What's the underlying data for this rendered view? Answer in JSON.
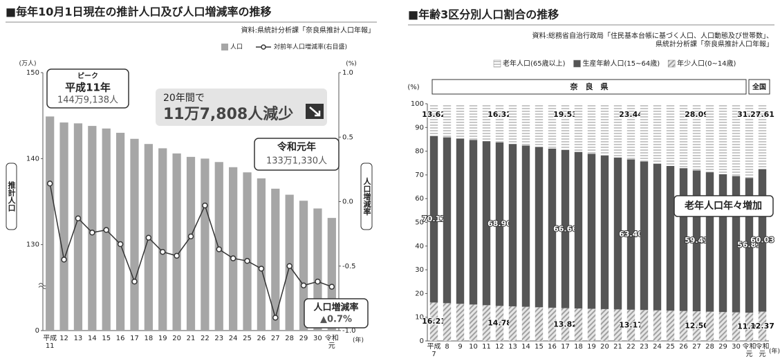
{
  "chart_data": [
    {
      "type": "bar",
      "title": "■毎年10月1日現在の推計人口及び人口増減率の推移",
      "source": "資料:県統計分析課「奈良県推計人口年報」",
      "y_unit": "(万人)",
      "y2_unit": "(%)",
      "x_unit": "(年)",
      "y_label": "推計人口",
      "y2_label": "人口増減率",
      "categories": [
        "平成11",
        "12",
        "13",
        "14",
        "15",
        "16",
        "17",
        "18",
        "19",
        "20",
        "21",
        "22",
        "23",
        "24",
        "25",
        "26",
        "27",
        "28",
        "29",
        "30",
        "令和元"
      ],
      "series": [
        {
          "name": "人口",
          "color": "#a6a6a6",
          "values": [
            144.9,
            144.2,
            144.1,
            143.8,
            143.5,
            143.0,
            142.3,
            141.7,
            141.2,
            140.6,
            140.2,
            140.0,
            139.6,
            139.0,
            138.4,
            137.7,
            136.5,
            135.8,
            135.1,
            134.2,
            133.1
          ]
        },
        {
          "name": "対前年人口増減率(右目盛)",
          "type": "line",
          "axis": "y2",
          "color": "#333333",
          "values": [
            0.14,
            -0.45,
            -0.13,
            -0.24,
            -0.22,
            -0.33,
            -0.62,
            -0.28,
            -0.39,
            -0.42,
            -0.27,
            -0.03,
            -0.37,
            -0.44,
            -0.46,
            -0.52,
            -0.9,
            -0.5,
            -0.65,
            -0.62,
            -0.66
          ]
        }
      ],
      "ylim": [
        0,
        150
      ],
      "yticks": [
        0,
        130,
        140,
        150
      ],
      "axis_break": [
        0,
        130
      ],
      "y2lim": [
        -1,
        1
      ],
      "y2ticks": [
        {
          "value": -1,
          "label": "-1.0"
        },
        {
          "value": -0.5,
          "label": "-0.5"
        },
        {
          "value": 0,
          "label": "0.0"
        },
        {
          "value": 0.5,
          "label": "0.5"
        },
        {
          "value": 1,
          "label": "1.0"
        }
      ],
      "grid": false,
      "legend": "top-right",
      "annotations": [
        "ピーク",
        "平成11年",
        "144万9,138人",
        "20年間で",
        "11万7,808人減少",
        "令和元年",
        "133万1,330人",
        "人口増減率",
        "▲0.7%"
      ]
    },
    {
      "type": "stacked_bar",
      "title": "■年齢3区分別人口割合の推移",
      "source": [
        "資料:総務省自治行政局「住民基本台帳に基づく人口、人口動態及び世帯数」、",
        "県統計分析課「奈良県推計人口年報」"
      ],
      "y_unit": "(%)",
      "x_unit": "(年)",
      "region_label": "奈　良　県",
      "comparison_label": "全国",
      "categories": [
        "平成7",
        "8",
        "9",
        "10",
        "11",
        "12",
        "13",
        "14",
        "15",
        "16",
        "17",
        "18",
        "19",
        "20",
        "21",
        "22",
        "23",
        "24",
        "25",
        "26",
        "27",
        "28",
        "29",
        "30",
        "令和元",
        "令和元"
      ],
      "series": [
        {
          "name": "年少人口(0~14歳)",
          "color": "#a0a0a0",
          "pattern": "diagonal",
          "label_color": "#111111",
          "values": [
            16.21,
            15.92,
            15.64,
            15.35,
            15.07,
            14.78,
            14.59,
            14.4,
            14.2,
            14.01,
            13.82,
            13.69,
            13.56,
            13.43,
            13.3,
            13.17,
            13.04,
            12.9,
            12.77,
            12.63,
            12.5,
            12.35,
            12.2,
            12.06,
            11.91,
            12.37
          ],
          "value_labels": [
            "16.21",
            null,
            null,
            null,
            null,
            "14.78",
            null,
            null,
            null,
            null,
            "13.82",
            null,
            null,
            null,
            null,
            "13.17",
            null,
            null,
            null,
            null,
            "12.50",
            null,
            null,
            null,
            "11.91",
            "12.37"
          ]
        },
        {
          "name": "生産年齢人口(15~64歳)",
          "color": "#555555",
          "pattern": "solid",
          "label_color": "#ffffff",
          "values": [
            70.17,
            69.92,
            69.66,
            69.41,
            69.15,
            68.9,
            68.45,
            68.0,
            67.56,
            67.11,
            66.66,
            66.01,
            65.36,
            64.7,
            64.05,
            63.4,
            62.6,
            61.8,
            61.01,
            60.21,
            59.41,
            58.76,
            58.11,
            57.46,
            56.81,
            60.03
          ],
          "value_labels": [
            "70.17",
            null,
            null,
            null,
            null,
            "68.90",
            null,
            null,
            null,
            null,
            "66.66",
            null,
            null,
            null,
            null,
            "63.40",
            null,
            null,
            null,
            null,
            "59.41",
            null,
            null,
            null,
            "56.81",
            "60.03"
          ]
        },
        {
          "name": "老年人口(65歳以上)",
          "color": "#c8c8c8",
          "pattern": "horizontal",
          "label_color": "#111111",
          "values": [
            13.62,
            14.16,
            14.7,
            15.24,
            15.78,
            16.32,
            16.96,
            17.6,
            18.25,
            18.89,
            19.53,
            20.31,
            21.09,
            21.88,
            22.66,
            23.44,
            24.37,
            25.3,
            26.23,
            27.16,
            28.09,
            28.89,
            29.69,
            30.48,
            31.28,
            27.61
          ],
          "value_labels": [
            "13.62",
            null,
            null,
            null,
            null,
            "16.32",
            null,
            null,
            null,
            null,
            "19.53",
            null,
            null,
            null,
            null,
            "23.44",
            null,
            null,
            null,
            null,
            "28.09",
            null,
            null,
            null,
            "31.28",
            "27.61"
          ]
        }
      ],
      "ylim": [
        0,
        100
      ],
      "yticks": [
        0,
        10,
        20,
        30,
        40,
        50,
        60,
        70,
        80,
        90,
        100
      ],
      "grid": false,
      "legend": "top-right",
      "legend_order": "reverse",
      "annotations": [
        "老年人口年々増加"
      ]
    }
  ]
}
